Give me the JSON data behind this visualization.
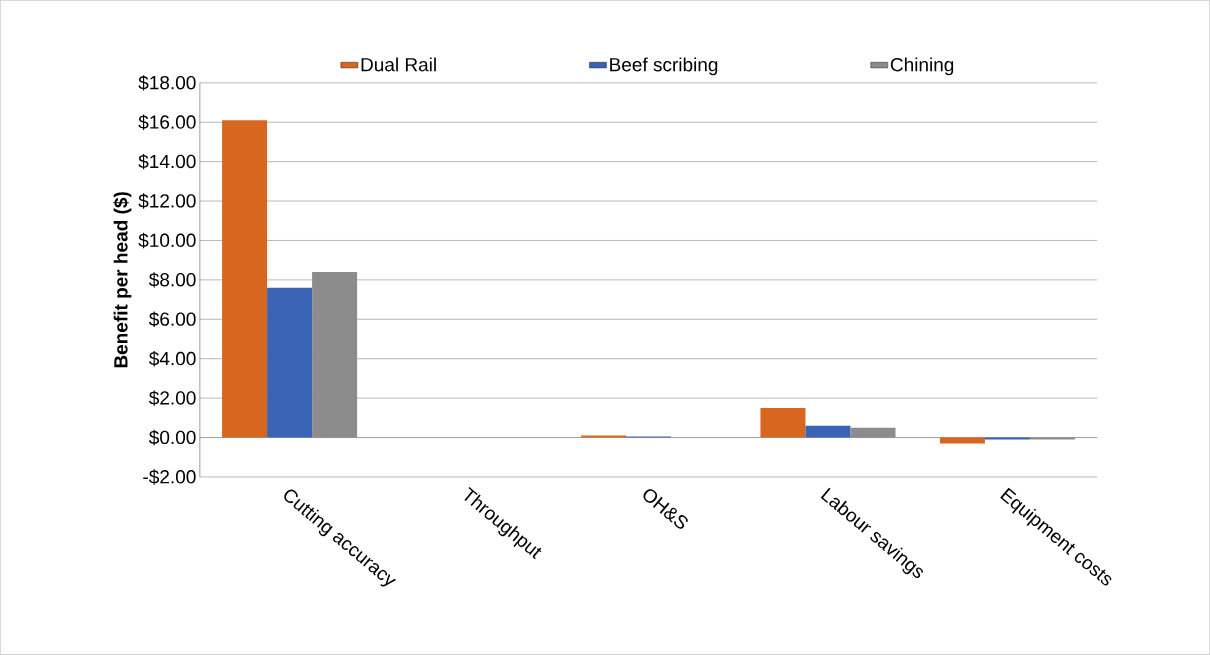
{
  "chart_data": {
    "type": "bar",
    "ylabel": "Benefit per head ($)",
    "categories": [
      "Cutting accuracy",
      "Throughput",
      "OH&S",
      "Labour savings",
      "Equipment costs"
    ],
    "series": [
      {
        "name": "Dual Rail",
        "color": "#d9661e",
        "values": [
          16.1,
          0,
          0.1,
          1.5,
          -0.3
        ]
      },
      {
        "name": "Beef scribing",
        "color": "#3a62b5",
        "values": [
          7.6,
          0,
          0.05,
          0.6,
          -0.1
        ]
      },
      {
        "name": "Chining",
        "color": "#8c8c8c",
        "values": [
          8.4,
          0,
          0,
          0.5,
          -0.1
        ]
      }
    ],
    "ylim": [
      -2,
      18
    ],
    "yticks": [
      {
        "value": -2,
        "label": "-$2.00"
      },
      {
        "value": 0,
        "label": "$0.00"
      },
      {
        "value": 2,
        "label": "$2.00"
      },
      {
        "value": 4,
        "label": "$4.00"
      },
      {
        "value": 6,
        "label": "$6.00"
      },
      {
        "value": 8,
        "label": "$8.00"
      },
      {
        "value": 10,
        "label": "$10.00"
      },
      {
        "value": 12,
        "label": "$12.00"
      },
      {
        "value": 14,
        "label": "$14.00"
      },
      {
        "value": 16,
        "label": "$16.00"
      },
      {
        "value": 18,
        "label": "$18.00"
      }
    ],
    "grid": "y",
    "legend": "top"
  }
}
